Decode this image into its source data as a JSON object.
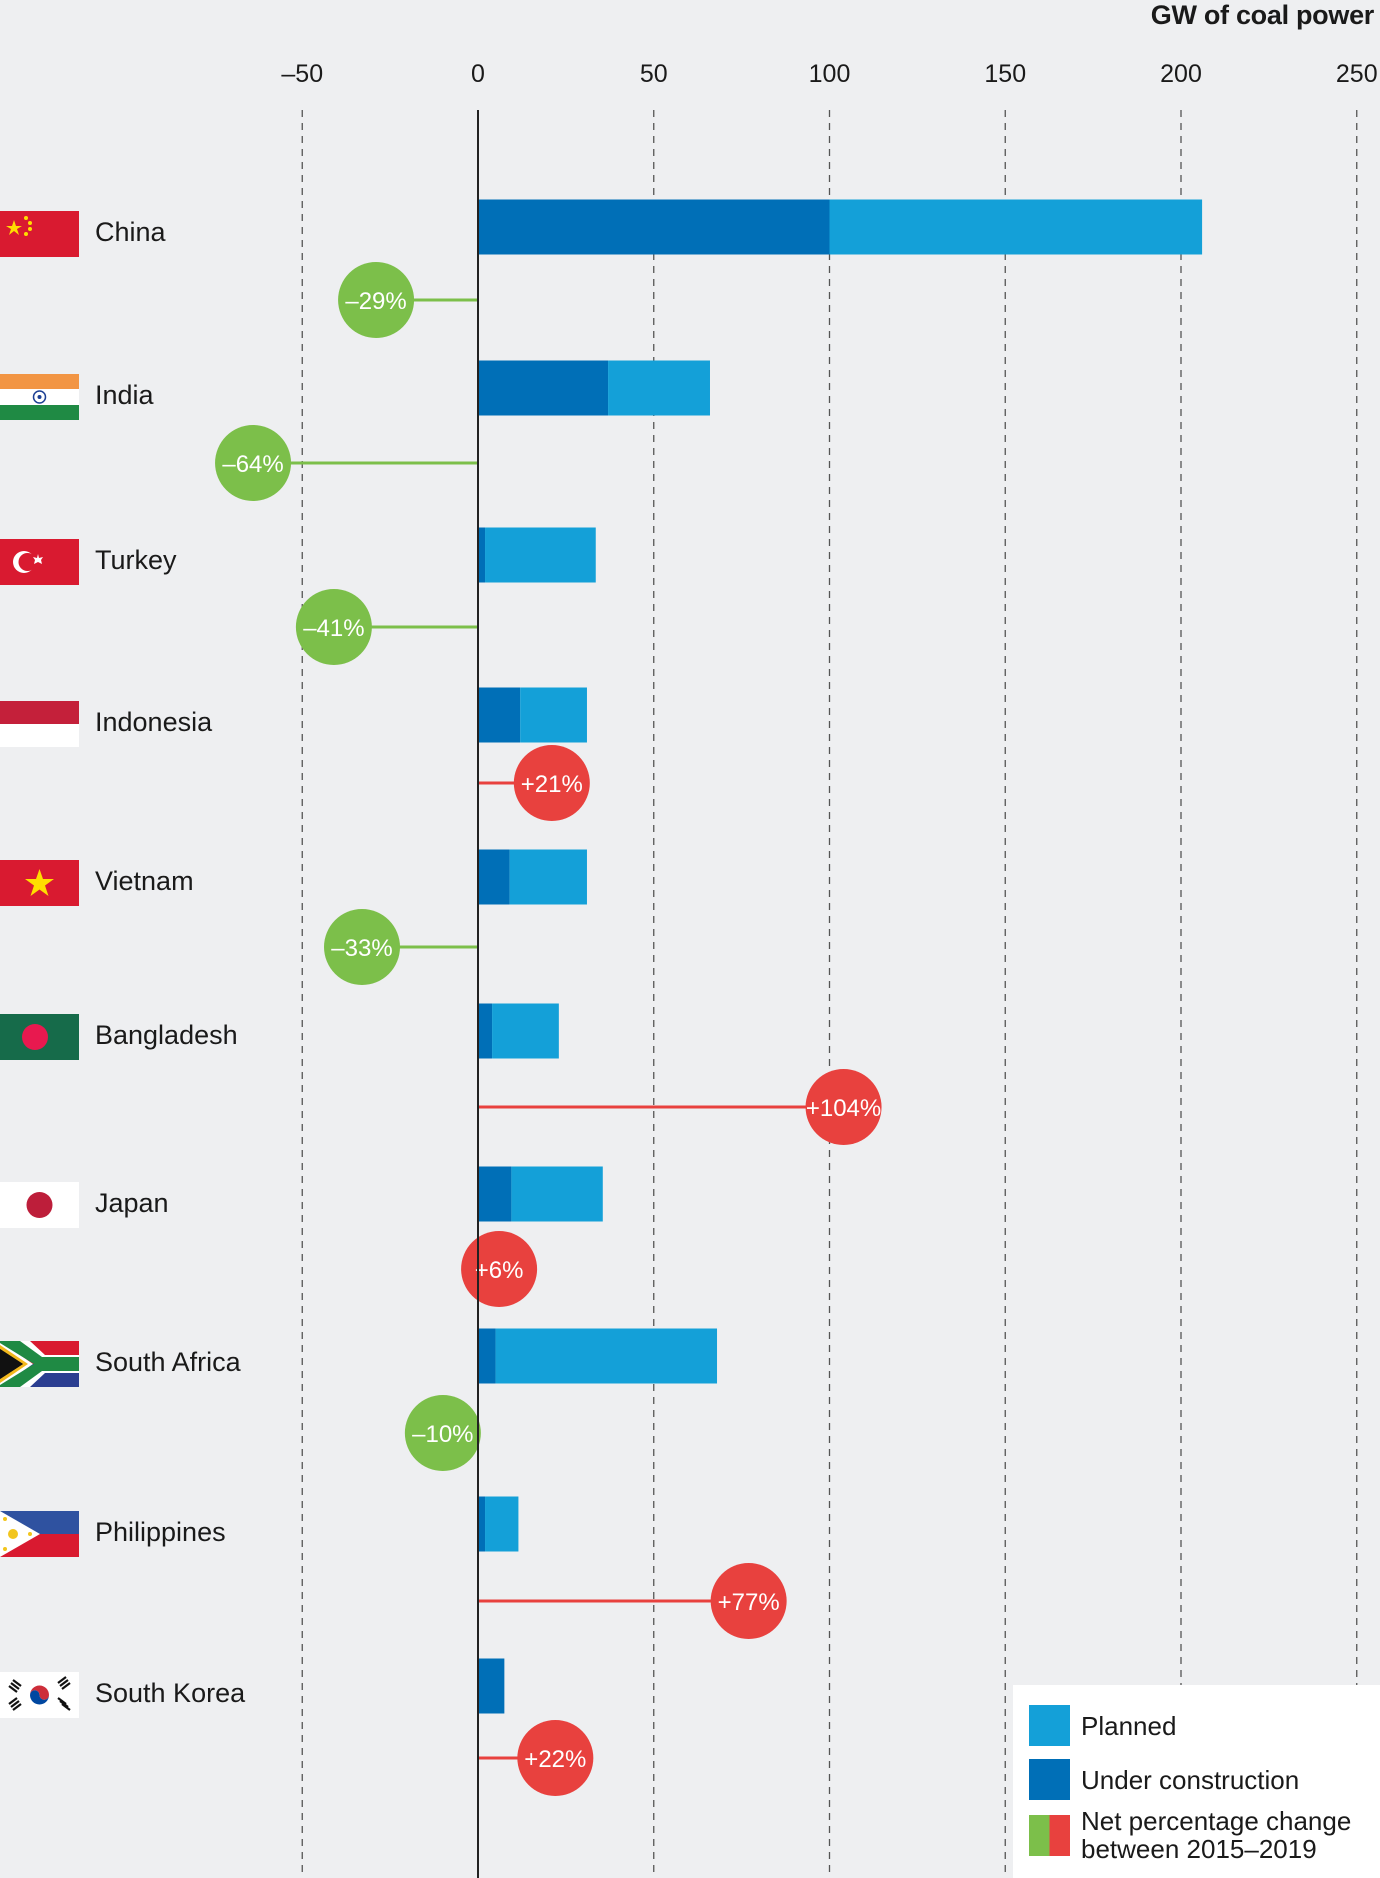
{
  "colors": {
    "planned": "#14a0d8",
    "under_construction": "#006fb7",
    "decrease": "#7cbf4a",
    "increase": "#e8413e",
    "axis": "#222222",
    "grid": "#555555"
  },
  "unit_label": "GW of coal power",
  "chart_data": {
    "type": "bar",
    "orientation": "horizontal",
    "stacked": true,
    "title": "",
    "xlabel": "GW of coal power",
    "xlim": [
      -50,
      250
    ],
    "xticks": [
      -50,
      0,
      50,
      100,
      150,
      200,
      250
    ],
    "xtick_labels": [
      "–50",
      "0",
      "50",
      "100",
      "150",
      "200",
      "250"
    ],
    "grid": "vertical dashed",
    "categories": [
      "China",
      "India",
      "Turkey",
      "Indonesia",
      "Vietnam",
      "Bangladesh",
      "Japan",
      "South Africa",
      "Philippines",
      "South Korea"
    ],
    "series": [
      {
        "name": "Under construction",
        "values": [
          100,
          37,
          2,
          12,
          9,
          4,
          9.5,
          5,
          2,
          7.5
        ]
      },
      {
        "name": "Planned",
        "values": [
          106,
          29,
          31.5,
          19,
          22,
          19,
          26,
          63,
          9.5,
          0
        ]
      },
      {
        "name": "Net percentage change between 2015–2019",
        "values": [
          -29,
          -64,
          -41,
          21,
          -33,
          104,
          6,
          -10,
          77,
          22
        ],
        "labels": [
          "–29%",
          "–64%",
          "–41%",
          "+21%",
          "–33%",
          "+104%",
          "+6%",
          "–10%",
          "+77%",
          "+22%"
        ]
      }
    ],
    "legend": {
      "position": "bottom-right",
      "entries": [
        "Planned",
        "Under construction",
        "Net percentage change between 2015–2019"
      ]
    }
  },
  "legend": {
    "planned": "Planned",
    "under_construction": "Under construction",
    "change_line1": "Net percentage change",
    "change_line2": "between 2015–2019"
  },
  "countries": [
    {
      "name": "China",
      "flag": "china-flag"
    },
    {
      "name": "India",
      "flag": "india-flag"
    },
    {
      "name": "Turkey",
      "flag": "turkey-flag"
    },
    {
      "name": "Indonesia",
      "flag": "indonesia-flag"
    },
    {
      "name": "Vietnam",
      "flag": "vietnam-flag"
    },
    {
      "name": "Bangladesh",
      "flag": "bangladesh-flag"
    },
    {
      "name": "Japan",
      "flag": "japan-flag"
    },
    {
      "name": "South Africa",
      "flag": "south-africa-flag"
    },
    {
      "name": "Philippines",
      "flag": "philippines-flag"
    },
    {
      "name": "South Korea",
      "flag": "south-korea-flag"
    }
  ]
}
